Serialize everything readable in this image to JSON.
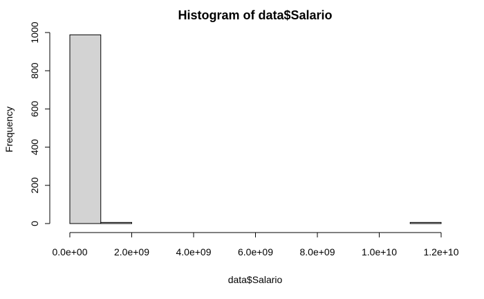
{
  "chart_data": {
    "type": "bar",
    "title": "Histogram of data$Salario",
    "xlabel": "data$Salario",
    "ylabel": "Frequency",
    "bins": [
      {
        "start": 0,
        "end": 1000000000,
        "count": 988
      },
      {
        "start": 1000000000,
        "end": 2000000000,
        "count": 6
      },
      {
        "start": 2000000000,
        "end": 3000000000,
        "count": 0
      },
      {
        "start": 3000000000,
        "end": 4000000000,
        "count": 0
      },
      {
        "start": 4000000000,
        "end": 5000000000,
        "count": 0
      },
      {
        "start": 5000000000,
        "end": 6000000000,
        "count": 0
      },
      {
        "start": 6000000000,
        "end": 7000000000,
        "count": 0
      },
      {
        "start": 7000000000,
        "end": 8000000000,
        "count": 0
      },
      {
        "start": 8000000000,
        "end": 9000000000,
        "count": 0
      },
      {
        "start": 9000000000,
        "end": 10000000000,
        "count": 0
      },
      {
        "start": 10000000000,
        "end": 11000000000,
        "count": 0
      },
      {
        "start": 11000000000,
        "end": 12000000000,
        "count": 6
      }
    ],
    "xlim": [
      0,
      12000000000
    ],
    "ylim": [
      0,
      1000
    ],
    "x_ticks": [
      0,
      2000000000,
      4000000000,
      6000000000,
      8000000000,
      10000000000,
      12000000000
    ],
    "x_tick_labels": [
      "0.0e+00",
      "2.0e+09",
      "4.0e+09",
      "6.0e+09",
      "8.0e+09",
      "1.0e+10",
      "1.2e+10"
    ],
    "y_ticks": [
      0,
      200,
      400,
      600,
      800,
      1000
    ],
    "y_tick_labels": [
      "0",
      "200",
      "400",
      "600",
      "800",
      "1000"
    ],
    "bar_fill": "#d3d3d3",
    "grid": false,
    "legend": "none"
  }
}
